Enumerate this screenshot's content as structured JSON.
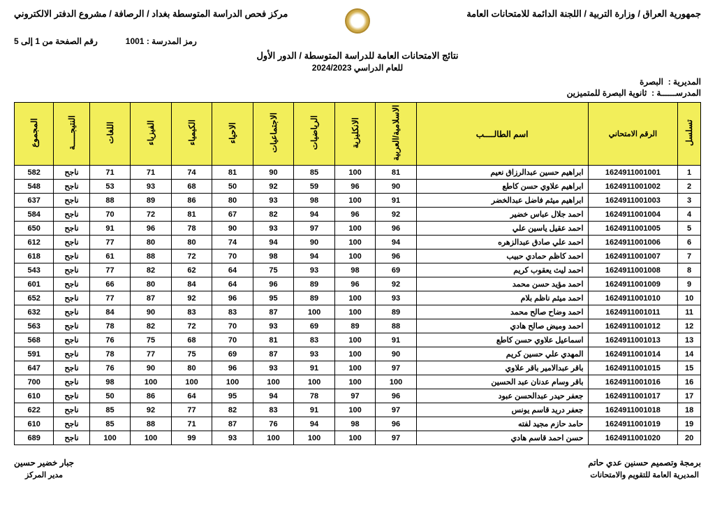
{
  "header": {
    "right_line": "جمهورية العراق / وزارة التربية / اللجنة الدائمة للامتحانات العامة",
    "left_line": "مركز فحص الدراسة المتوسطة بغداد / الرصافة / مشروع الدفتر الالكتروني",
    "school_code_label": "رمز المدرسة :",
    "school_code": "1001",
    "page_label": "رقم الصفحة من 1 إلى 5",
    "title": "نتائج الامتحانات العامة للدراسة المتوسطة / الدور الأول",
    "year_label": "للعام الدراسي",
    "year": "2024/2023",
    "directorate_label": "المديرية :",
    "directorate": "البصرة",
    "school_label": "المدرســــــة :",
    "school": "ثانوية البصرة للمتميزين"
  },
  "columns": {
    "seq": "تسلسل",
    "exam_no": "الرقم الامتحاني",
    "name": "اسم الطالــــب",
    "islamic": "الاسلامية/العربية",
    "english": "الانكليزية",
    "math": "الرياضيات",
    "social": "الاجتماعيات",
    "biology": "الاحياء",
    "chemistry": "الكيمياء",
    "physics": "الفيزياء",
    "french": "اللغات",
    "result": "النتيجـــــة",
    "total": "المجموع"
  },
  "rows": [
    {
      "seq": 1,
      "exam": "1624911001001",
      "name": "ابراهيم حسين عبدالرزاق نعيم",
      "s": [
        81,
        100,
        85,
        90,
        81,
        74,
        71,
        71
      ],
      "res": "ناجح",
      "tot": 582
    },
    {
      "seq": 2,
      "exam": "1624911001002",
      "name": "ابراهيم علاوي حسن كاطع",
      "s": [
        90,
        96,
        59,
        92,
        50,
        68,
        93,
        53
      ],
      "res": "ناجح",
      "tot": 548
    },
    {
      "seq": 3,
      "exam": "1624911001003",
      "name": "ابراهيم ميثم فاضل عبدالخضر",
      "s": [
        91,
        100,
        98,
        93,
        80,
        86,
        89,
        88
      ],
      "res": "ناجح",
      "tot": 637
    },
    {
      "seq": 4,
      "exam": "1624911001004",
      "name": "احمد جلال عباس خضير",
      "s": [
        92,
        96,
        94,
        82,
        67,
        81,
        72,
        70
      ],
      "res": "ناجح",
      "tot": 584
    },
    {
      "seq": 5,
      "exam": "1624911001005",
      "name": "احمد عقيل ياسين علي",
      "s": [
        96,
        100,
        97,
        93,
        90,
        78,
        96,
        91
      ],
      "res": "ناجح",
      "tot": 650
    },
    {
      "seq": 6,
      "exam": "1624911001006",
      "name": "احمد علي صادق عبدالزهره",
      "s": [
        94,
        100,
        90,
        94,
        74,
        80,
        80,
        77
      ],
      "res": "ناجح",
      "tot": 612
    },
    {
      "seq": 7,
      "exam": "1624911001007",
      "name": "احمد كاظم حمادي حبيب",
      "s": [
        96,
        100,
        94,
        98,
        70,
        72,
        88,
        61
      ],
      "res": "ناجح",
      "tot": 618
    },
    {
      "seq": 8,
      "exam": "1624911001008",
      "name": "احمد ليث يعقوب كريم",
      "s": [
        69,
        98,
        93,
        75,
        64,
        62,
        82,
        77
      ],
      "res": "ناجح",
      "tot": 543
    },
    {
      "seq": 9,
      "exam": "1624911001009",
      "name": "احمد مؤيد حسن محمد",
      "s": [
        92,
        96,
        89,
        96,
        64,
        84,
        80,
        66
      ],
      "res": "ناجح",
      "tot": 601
    },
    {
      "seq": 10,
      "exam": "1624911001010",
      "name": "احمد ميثم ناظم بلام",
      "s": [
        93,
        100,
        89,
        95,
        96,
        92,
        87,
        77
      ],
      "res": "ناجح",
      "tot": 652
    },
    {
      "seq": 11,
      "exam": "1624911001011",
      "name": "احمد وضاح صالح محمد",
      "s": [
        89,
        100,
        100,
        87,
        83,
        83,
        90,
        84
      ],
      "res": "ناجح",
      "tot": 632
    },
    {
      "seq": 12,
      "exam": "1624911001012",
      "name": "احمد وميض صالح هادي",
      "s": [
        88,
        89,
        69,
        93,
        70,
        72,
        82,
        78
      ],
      "res": "ناجح",
      "tot": 563
    },
    {
      "seq": 13,
      "exam": "1624911001013",
      "name": "اسماعيل علاوي حسن كاطع",
      "s": [
        91,
        100,
        83,
        81,
        70,
        68,
        75,
        76
      ],
      "res": "ناجح",
      "tot": 568
    },
    {
      "seq": 14,
      "exam": "1624911001014",
      "name": "المهدي علي حسين كريم",
      "s": [
        90,
        100,
        93,
        87,
        69,
        75,
        77,
        78
      ],
      "res": "ناجح",
      "tot": 591
    },
    {
      "seq": 15,
      "exam": "1624911001015",
      "name": "باقر عبدالامير باقر علاوي",
      "s": [
        97,
        100,
        91,
        93,
        96,
        80,
        90,
        76
      ],
      "res": "ناجح",
      "tot": 647
    },
    {
      "seq": 16,
      "exam": "1624911001016",
      "name": "باقر وسام عدنان عبد الحسين",
      "s": [
        100,
        100,
        100,
        100,
        100,
        100,
        100,
        98
      ],
      "res": "ناجح",
      "tot": 700
    },
    {
      "seq": 17,
      "exam": "1624911001017",
      "name": "جعفر حيدر عبدالحسن عبود",
      "s": [
        96,
        97,
        78,
        94,
        95,
        64,
        86,
        50
      ],
      "res": "ناجح",
      "tot": 610
    },
    {
      "seq": 18,
      "exam": "1624911001018",
      "name": "جعفر دريد قاسم يونس",
      "s": [
        97,
        100,
        91,
        83,
        82,
        77,
        92,
        85
      ],
      "res": "ناجح",
      "tot": 622
    },
    {
      "seq": 19,
      "exam": "1624911001019",
      "name": "حامد حازم مجيد لفته",
      "s": [
        96,
        98,
        94,
        76,
        87,
        71,
        88,
        85
      ],
      "res": "ناجح",
      "tot": 610
    },
    {
      "seq": 20,
      "exam": "1624911001020",
      "name": "حسن احمد قاسم هادي",
      "s": [
        97,
        100,
        100,
        100,
        93,
        99,
        100,
        100
      ],
      "res": "ناجح",
      "tot": 689
    }
  ],
  "footer": {
    "right_name": "برمجة وتصميم حسنين عدي حاتم",
    "right_sub": "المديرية العامة للتقويم والامتحانات",
    "left_name": "جبار خضير حسين",
    "left_sub": "مدير المركز"
  }
}
